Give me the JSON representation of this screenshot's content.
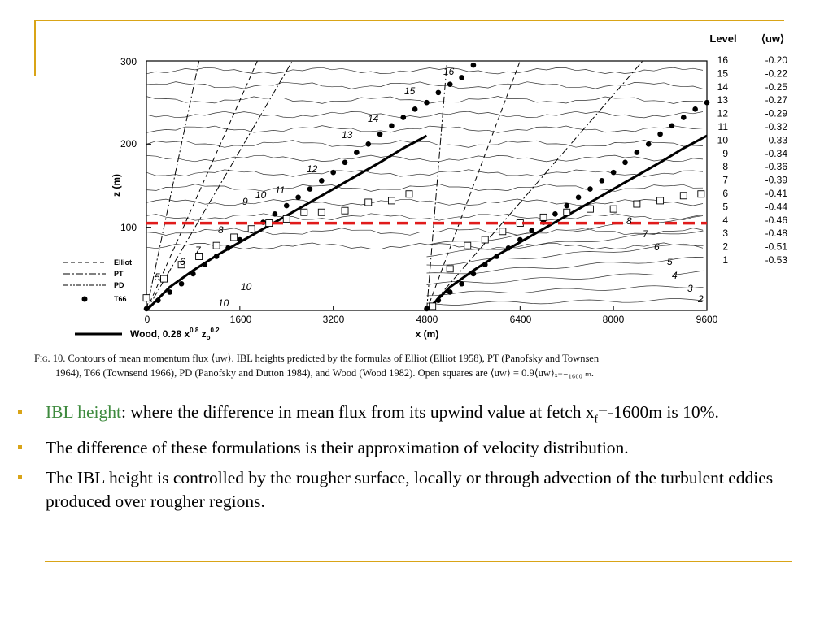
{
  "figure": {
    "level_header": "Level",
    "uw_header": "⟨uw⟩",
    "levels": [
      {
        "level": "16",
        "value": "-0.20"
      },
      {
        "level": "15",
        "value": "-0.22"
      },
      {
        "level": "14",
        "value": "-0.25"
      },
      {
        "level": "13",
        "value": "-0.27"
      },
      {
        "level": "12",
        "value": "-0.29"
      },
      {
        "level": "11",
        "value": "-0.32"
      },
      {
        "level": "10",
        "value": "-0.33"
      },
      {
        "level": "9",
        "value": "-0.34"
      },
      {
        "level": "8",
        "value": "-0.36"
      },
      {
        "level": "7",
        "value": "-0.39"
      },
      {
        "level": "6",
        "value": "-0.41"
      },
      {
        "level": "5",
        "value": "-0.44"
      },
      {
        "level": "4",
        "value": "-0.46"
      },
      {
        "level": "3",
        "value": "-0.48"
      },
      {
        "level": "2",
        "value": "-0.51"
      },
      {
        "level": "1",
        "value": "-0.53"
      }
    ],
    "legend": {
      "elliot": "Elliot",
      "pt": "PT",
      "pd": "PD",
      "t66": "T66",
      "wood": "Wood, 0.28 x",
      "wood_sup1": "0.8",
      "wood_mid": " z",
      "wood_sub": "o",
      "wood_sup2": "0.2"
    },
    "contour_labels": [
      "16",
      "15",
      "14",
      "13",
      "12",
      "11",
      "10",
      "9",
      "8",
      "7",
      "6",
      "5",
      "10",
      "10",
      "8",
      "7",
      "6",
      "5",
      "4",
      "3",
      "2"
    ],
    "caption": {
      "fig": "Fig. 10.",
      "line1": " Contours of mean momentum flux ⟨uw⟩. IBL heights predicted by the formulas of Elliot (Elliot 1958), PT (Panofsky and Townsen",
      "line2": "1964), T66 (Townsend 1966), PD (Panofsky and Dutton 1984), and Wood (Wood 1982). Open squares are ⟨uw⟩ = 0.9⟨uw⟩ₓ₌₋₁₆₀₀ ₘ."
    }
  },
  "chart_data": {
    "type": "line",
    "title": "",
    "xlabel": "x (m)",
    "ylabel": "z (m)",
    "xlim": [
      0,
      9600
    ],
    "ylim": [
      0,
      300
    ],
    "x_ticks": [
      "0",
      "1600",
      "3200",
      "4800",
      "6400",
      "8000",
      "9600"
    ],
    "y_ticks": [
      "100",
      "200",
      "300"
    ],
    "series": [
      {
        "name": "Wood, 0.28 x^0.8 z0^0.2",
        "style": "solid-thick",
        "x": [
          0,
          400,
          800,
          1200,
          1600,
          2000,
          2400,
          2800,
          3200,
          3600,
          4000,
          4400,
          4800
        ],
        "y": [
          0,
          28,
          48,
          66,
          82,
          98,
          114,
          130,
          146,
          162,
          178,
          195,
          210
        ]
      },
      {
        "name": "Wood, 0.28 x^0.8 z0^0.2",
        "style": "solid-thick",
        "x": [
          4800,
          5200,
          5600,
          6000,
          6400,
          6800,
          7200,
          7600,
          8000,
          8400,
          8800,
          9200,
          9600
        ],
        "y": [
          0,
          28,
          48,
          66,
          82,
          98,
          114,
          130,
          146,
          162,
          178,
          195,
          210
        ]
      },
      {
        "name": "T66",
        "style": "dots",
        "x": [
          0,
          200,
          400,
          600,
          800,
          1000,
          1200,
          1400,
          1600,
          1800,
          2000,
          2200,
          2400,
          2600,
          2800,
          3000,
          3200,
          3400,
          3600,
          3800,
          4000,
          4200,
          4400,
          4600,
          4800,
          5000,
          5200,
          5400,
          5600
        ],
        "y": [
          2,
          12,
          22,
          32,
          44,
          55,
          65,
          75,
          85,
          96,
          106,
          116,
          126,
          136,
          146,
          156,
          166,
          178,
          190,
          200,
          212,
          222,
          232,
          242,
          250,
          262,
          272,
          280,
          295
        ]
      },
      {
        "name": "T66",
        "style": "dots",
        "x": [
          4800,
          5000,
          5200,
          5400,
          5600,
          5800,
          6000,
          6200,
          6400,
          6600,
          6800,
          7000,
          7200,
          7400,
          7600,
          7800,
          8000,
          8200,
          8400,
          8600,
          8800,
          9000,
          9200,
          9400,
          9600
        ],
        "y": [
          2,
          12,
          22,
          32,
          44,
          55,
          65,
          75,
          85,
          96,
          106,
          116,
          126,
          136,
          146,
          156,
          166,
          178,
          190,
          200,
          212,
          222,
          232,
          242,
          250
        ]
      },
      {
        "name": "Elliot",
        "style": "dashed",
        "x": [
          0,
          1900
        ],
        "y": [
          0,
          300
        ]
      },
      {
        "name": "Elliot",
        "style": "dashed",
        "x": [
          4800,
          6400
        ],
        "y": [
          0,
          300
        ]
      },
      {
        "name": "PT",
        "style": "dash-dot",
        "x": [
          0,
          900
        ],
        "y": [
          0,
          300
        ]
      },
      {
        "name": "PT",
        "style": "dash-dot",
        "x": [
          4800,
          5150
        ],
        "y": [
          0,
          300
        ]
      },
      {
        "name": "PD",
        "style": "dash-dot",
        "x": [
          0,
          2500
        ],
        "y": [
          0,
          300
        ]
      },
      {
        "name": "PD",
        "style": "dash-dot",
        "x": [
          4800,
          8500
        ],
        "y": [
          0,
          300
        ]
      },
      {
        "name": "Open squares",
        "style": "squares",
        "x": [
          0,
          300,
          600,
          900,
          1200,
          1500,
          1800,
          2100,
          2400,
          2700,
          3000,
          3400,
          3800,
          4200,
          4500,
          4900,
          5200,
          5500,
          5800,
          6100,
          6400,
          6800,
          7200,
          7600,
          8000,
          8400,
          8800,
          9200,
          9500
        ],
        "y": [
          15,
          38,
          55,
          65,
          78,
          88,
          98,
          105,
          110,
          118,
          118,
          120,
          130,
          132,
          140,
          5,
          50,
          78,
          85,
          95,
          105,
          112,
          118,
          122,
          122,
          128,
          132,
          138,
          140
        ]
      },
      {
        "name": "Reference height",
        "style": "red-dashed",
        "x": [
          0,
          9600
        ],
        "y": [
          105,
          105
        ]
      }
    ]
  },
  "bullets": [
    {
      "prefix": "IBL height",
      "text": ": where the difference in mean flux from its upwind value at fetch x",
      "sub": "f",
      "suffix": "=-1600m is 10%."
    },
    {
      "text": "The difference of these formulations is their approximation of velocity distribution."
    },
    {
      "text": "The IBL height is controlled by the rougher surface, locally or through advection of the turbulent eddies produced over rougher regions."
    }
  ],
  "colors": {
    "accent": "#d9a417",
    "highlight": "#3e8a3e",
    "reference_line": "#e01b1b"
  }
}
